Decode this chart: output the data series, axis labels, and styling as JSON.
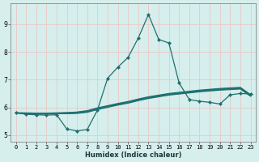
{
  "xlabel": "Humidex (Indice chaleur)",
  "xlim": [
    -0.5,
    23.5
  ],
  "ylim": [
    4.75,
    9.75
  ],
  "yticks": [
    5,
    6,
    7,
    8,
    9
  ],
  "xticks": [
    0,
    1,
    2,
    3,
    4,
    5,
    6,
    7,
    8,
    9,
    10,
    11,
    12,
    13,
    14,
    15,
    16,
    17,
    18,
    19,
    20,
    21,
    22,
    23
  ],
  "bg_color": "#d6eeec",
  "line_color": "#1e7070",
  "grid_color": "#e8c8c8",
  "line_width": 0.9,
  "marker": "D",
  "marker_size": 2.2,
  "tick_fontsize": 5.0,
  "xlabel_fontsize": 6.0,
  "lines": [
    [
      5.8,
      5.75,
      5.73,
      5.72,
      5.73,
      5.22,
      5.15,
      5.2,
      5.9,
      7.05,
      7.45,
      7.8,
      8.5,
      9.35,
      8.45,
      8.32,
      6.88,
      6.28,
      6.22,
      6.18,
      6.12,
      6.45,
      6.5,
      6.48
    ],
    [
      5.8,
      5.77,
      5.76,
      5.76,
      5.77,
      5.77,
      5.78,
      5.82,
      5.92,
      6.0,
      6.08,
      6.15,
      6.24,
      6.32,
      6.38,
      6.44,
      6.48,
      6.52,
      6.56,
      6.59,
      6.62,
      6.64,
      6.66,
      6.4
    ],
    [
      5.8,
      5.78,
      5.77,
      5.77,
      5.78,
      5.79,
      5.8,
      5.84,
      5.94,
      6.02,
      6.1,
      6.17,
      6.26,
      6.34,
      6.4,
      6.46,
      6.5,
      6.54,
      6.58,
      6.61,
      6.64,
      6.66,
      6.68,
      6.42
    ],
    [
      5.8,
      5.79,
      5.78,
      5.78,
      5.79,
      5.8,
      5.82,
      5.86,
      5.96,
      6.04,
      6.12,
      6.19,
      6.28,
      6.36,
      6.42,
      6.48,
      6.52,
      6.56,
      6.6,
      6.63,
      6.66,
      6.68,
      6.7,
      6.44
    ],
    [
      5.8,
      5.8,
      5.79,
      5.79,
      5.8,
      5.81,
      5.83,
      5.88,
      5.98,
      6.06,
      6.14,
      6.21,
      6.3,
      6.38,
      6.44,
      6.5,
      6.54,
      6.58,
      6.62,
      6.65,
      6.68,
      6.7,
      6.72,
      6.46
    ]
  ]
}
